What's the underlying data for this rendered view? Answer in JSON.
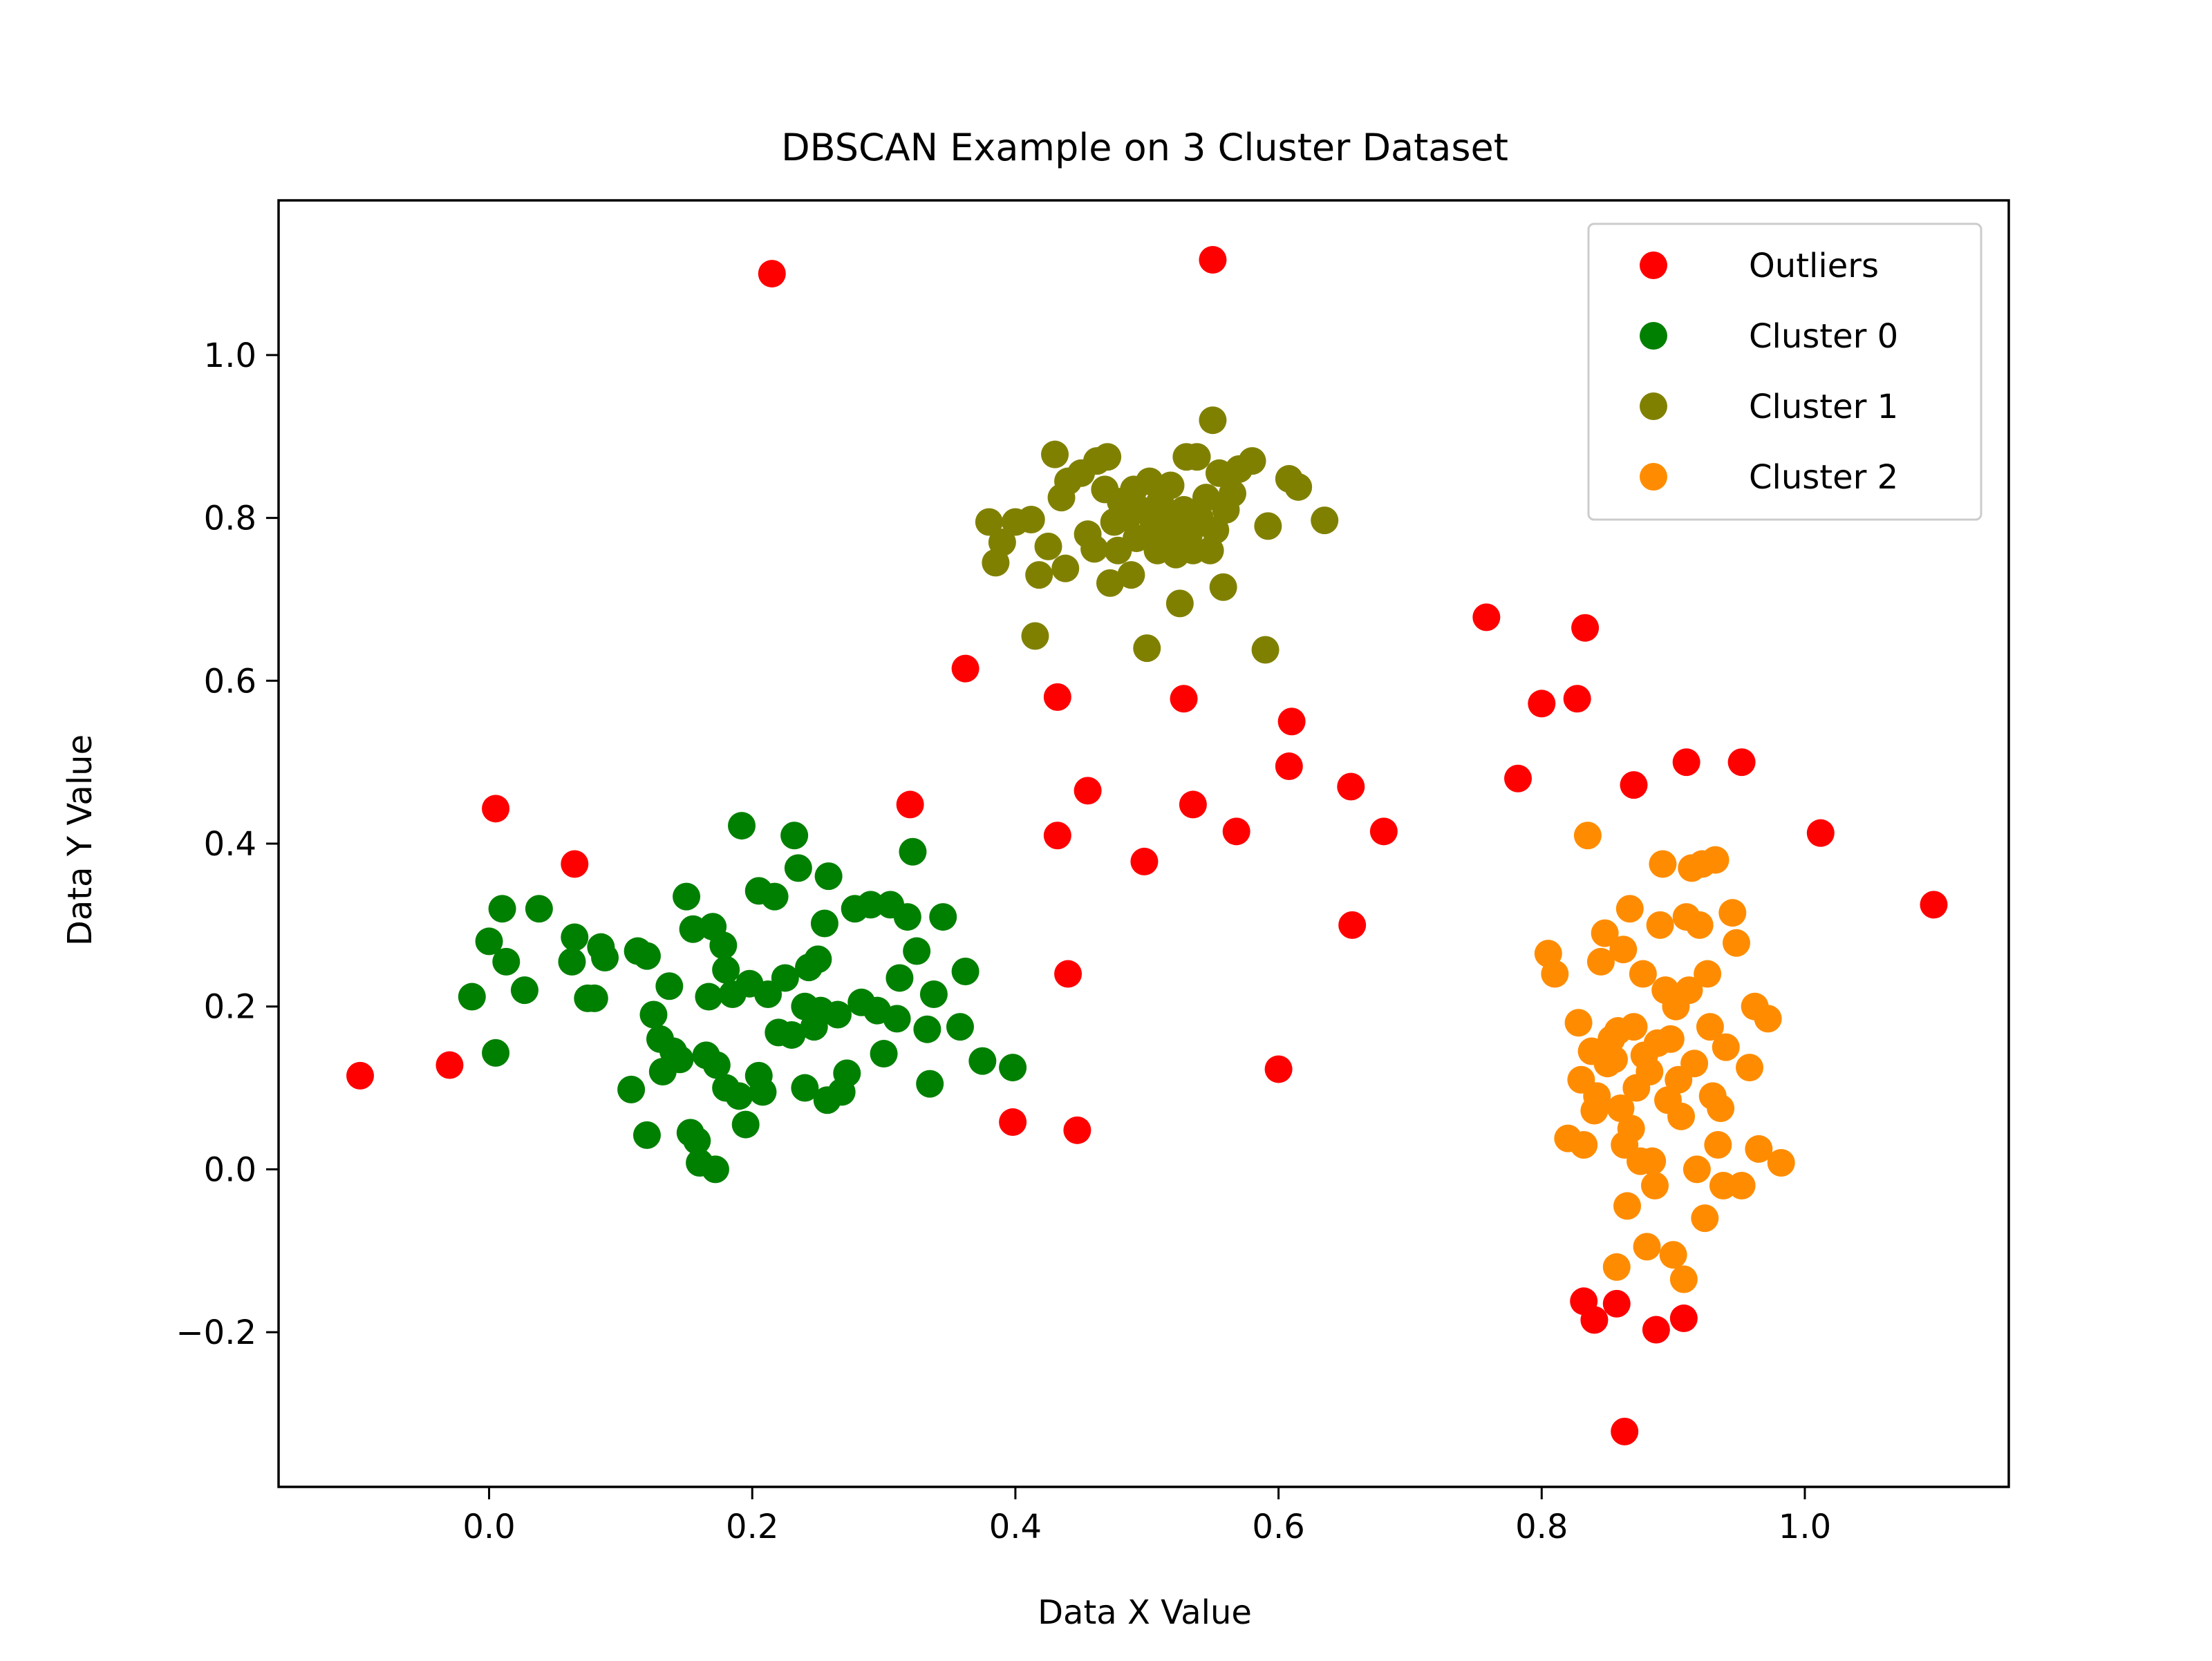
{
  "chart_data": {
    "type": "scatter",
    "title": "DBSCAN Example on 3 Cluster Dataset",
    "xlabel": "Data X Value",
    "ylabel": "Data Y Value",
    "xlim": [
      -0.16,
      1.155
    ],
    "ylim": [
      -0.39,
      1.19
    ],
    "xticks": [
      0.0,
      0.2,
      0.4,
      0.6,
      0.8,
      1.0
    ],
    "xtick_labels": [
      "0.0",
      "0.2",
      "0.4",
      "0.6",
      "0.8",
      "1.0"
    ],
    "yticks": [
      -0.2,
      0.0,
      0.2,
      0.4,
      0.6,
      0.8,
      1.0
    ],
    "ytick_labels": [
      "−0.2",
      "0.0",
      "0.2",
      "0.4",
      "0.6",
      "0.8",
      "1.0"
    ],
    "grid": false,
    "legend_position": "top-right",
    "series": [
      {
        "name": "Outliers",
        "color": "#ff0000",
        "points": [
          [
            0.215,
            1.1
          ],
          [
            0.55,
            1.117
          ],
          [
            -0.098,
            0.115
          ],
          [
            -0.03,
            0.128
          ],
          [
            0.005,
            0.443
          ],
          [
            0.065,
            0.375
          ],
          [
            0.32,
            0.448
          ],
          [
            0.362,
            0.615
          ],
          [
            0.432,
            0.58
          ],
          [
            0.528,
            0.578
          ],
          [
            0.432,
            0.41
          ],
          [
            0.455,
            0.465
          ],
          [
            0.498,
            0.378
          ],
          [
            0.535,
            0.448
          ],
          [
            0.568,
            0.415
          ],
          [
            0.44,
            0.24
          ],
          [
            0.398,
            0.058
          ],
          [
            0.447,
            0.048
          ],
          [
            0.61,
            0.55
          ],
          [
            0.608,
            0.495
          ],
          [
            0.655,
            0.47
          ],
          [
            0.68,
            0.415
          ],
          [
            0.656,
            0.3
          ],
          [
            0.6,
            0.123
          ],
          [
            0.758,
            0.678
          ],
          [
            0.833,
            0.665
          ],
          [
            0.8,
            0.572
          ],
          [
            0.827,
            0.578
          ],
          [
            0.782,
            0.48
          ],
          [
            0.87,
            0.472
          ],
          [
            0.91,
            0.5
          ],
          [
            0.952,
            0.5
          ],
          [
            1.012,
            0.413
          ],
          [
            1.098,
            0.325
          ],
          [
            0.832,
            -0.162
          ],
          [
            0.84,
            -0.185
          ],
          [
            0.857,
            -0.165
          ],
          [
            0.887,
            -0.197
          ],
          [
            0.908,
            -0.183
          ],
          [
            0.863,
            -0.322
          ]
        ]
      },
      {
        "name": "Cluster 0",
        "color": "#008000",
        "points": [
          [
            0.0,
            0.28
          ],
          [
            0.01,
            0.32
          ],
          [
            0.013,
            0.255
          ],
          [
            -0.013,
            0.212
          ],
          [
            0.027,
            0.22
          ],
          [
            0.005,
            0.143
          ],
          [
            0.038,
            0.32
          ],
          [
            0.065,
            0.285
          ],
          [
            0.063,
            0.255
          ],
          [
            0.075,
            0.21
          ],
          [
            0.085,
            0.273
          ],
          [
            0.08,
            0.21
          ],
          [
            0.088,
            0.26
          ],
          [
            0.108,
            0.098
          ],
          [
            0.113,
            0.268
          ],
          [
            0.12,
            0.262
          ],
          [
            0.12,
            0.042
          ],
          [
            0.125,
            0.19
          ],
          [
            0.13,
            0.16
          ],
          [
            0.132,
            0.12
          ],
          [
            0.14,
            0.145
          ],
          [
            0.137,
            0.225
          ],
          [
            0.145,
            0.135
          ],
          [
            0.15,
            0.335
          ],
          [
            0.155,
            0.295
          ],
          [
            0.153,
            0.045
          ],
          [
            0.158,
            0.035
          ],
          [
            0.16,
            0.008
          ],
          [
            0.167,
            0.212
          ],
          [
            0.165,
            0.14
          ],
          [
            0.17,
            0.298
          ],
          [
            0.173,
            0.128
          ],
          [
            0.172,
            0.0
          ],
          [
            0.18,
            0.245
          ],
          [
            0.178,
            0.275
          ],
          [
            0.185,
            0.215
          ],
          [
            0.18,
            0.1
          ],
          [
            0.192,
            0.422
          ],
          [
            0.19,
            0.09
          ],
          [
            0.195,
            0.055
          ],
          [
            0.198,
            0.228
          ],
          [
            0.205,
            0.115
          ],
          [
            0.205,
            0.342
          ],
          [
            0.208,
            0.095
          ],
          [
            0.212,
            0.215
          ],
          [
            0.217,
            0.335
          ],
          [
            0.22,
            0.168
          ],
          [
            0.225,
            0.235
          ],
          [
            0.23,
            0.165
          ],
          [
            0.232,
            0.41
          ],
          [
            0.235,
            0.37
          ],
          [
            0.24,
            0.2
          ],
          [
            0.24,
            0.1
          ],
          [
            0.243,
            0.248
          ],
          [
            0.247,
            0.175
          ],
          [
            0.25,
            0.258
          ],
          [
            0.252,
            0.195
          ],
          [
            0.255,
            0.302
          ],
          [
            0.257,
            0.085
          ],
          [
            0.258,
            0.36
          ],
          [
            0.265,
            0.19
          ],
          [
            0.268,
            0.095
          ],
          [
            0.272,
            0.118
          ],
          [
            0.278,
            0.32
          ],
          [
            0.283,
            0.205
          ],
          [
            0.29,
            0.325
          ],
          [
            0.295,
            0.195
          ],
          [
            0.3,
            0.142
          ],
          [
            0.305,
            0.325
          ],
          [
            0.31,
            0.185
          ],
          [
            0.312,
            0.235
          ],
          [
            0.318,
            0.31
          ],
          [
            0.322,
            0.39
          ],
          [
            0.325,
            0.268
          ],
          [
            0.333,
            0.172
          ],
          [
            0.335,
            0.105
          ],
          [
            0.338,
            0.215
          ],
          [
            0.345,
            0.31
          ],
          [
            0.358,
            0.175
          ],
          [
            0.362,
            0.243
          ],
          [
            0.375,
            0.133
          ],
          [
            0.398,
            0.125
          ]
        ]
      },
      {
        "name": "Cluster 1",
        "color": "#808000",
        "points": [
          [
            0.38,
            0.795
          ],
          [
            0.385,
            0.745
          ],
          [
            0.39,
            0.77
          ],
          [
            0.4,
            0.795
          ],
          [
            0.412,
            0.798
          ],
          [
            0.415,
            0.655
          ],
          [
            0.418,
            0.73
          ],
          [
            0.425,
            0.765
          ],
          [
            0.43,
            0.878
          ],
          [
            0.435,
            0.825
          ],
          [
            0.438,
            0.738
          ],
          [
            0.44,
            0.845
          ],
          [
            0.45,
            0.855
          ],
          [
            0.455,
            0.78
          ],
          [
            0.46,
            0.762
          ],
          [
            0.462,
            0.87
          ],
          [
            0.468,
            0.835
          ],
          [
            0.47,
            0.875
          ],
          [
            0.472,
            0.72
          ],
          [
            0.475,
            0.795
          ],
          [
            0.478,
            0.76
          ],
          [
            0.48,
            0.82
          ],
          [
            0.485,
            0.8
          ],
          [
            0.488,
            0.73
          ],
          [
            0.49,
            0.835
          ],
          [
            0.492,
            0.775
          ],
          [
            0.495,
            0.81
          ],
          [
            0.5,
            0.64
          ],
          [
            0.502,
            0.845
          ],
          [
            0.505,
            0.79
          ],
          [
            0.508,
            0.76
          ],
          [
            0.51,
            0.82
          ],
          [
            0.512,
            0.8
          ],
          [
            0.515,
            0.775
          ],
          [
            0.518,
            0.84
          ],
          [
            0.52,
            0.795
          ],
          [
            0.522,
            0.755
          ],
          [
            0.525,
            0.695
          ],
          [
            0.528,
            0.81
          ],
          [
            0.53,
            0.875
          ],
          [
            0.532,
            0.78
          ],
          [
            0.535,
            0.76
          ],
          [
            0.538,
            0.875
          ],
          [
            0.54,
            0.8
          ],
          [
            0.545,
            0.825
          ],
          [
            0.548,
            0.76
          ],
          [
            0.55,
            0.92
          ],
          [
            0.552,
            0.785
          ],
          [
            0.555,
            0.855
          ],
          [
            0.558,
            0.715
          ],
          [
            0.56,
            0.81
          ],
          [
            0.565,
            0.83
          ],
          [
            0.57,
            0.86
          ],
          [
            0.58,
            0.87
          ],
          [
            0.59,
            0.638
          ],
          [
            0.592,
            0.79
          ],
          [
            0.608,
            0.848
          ],
          [
            0.615,
            0.838
          ],
          [
            0.635,
            0.797
          ]
        ]
      },
      {
        "name": "Cluster 2",
        "color": "#ff8c00",
        "points": [
          [
            0.805,
            0.265
          ],
          [
            0.81,
            0.24
          ],
          [
            0.82,
            0.038
          ],
          [
            0.828,
            0.18
          ],
          [
            0.83,
            0.11
          ],
          [
            0.832,
            0.03
          ],
          [
            0.835,
            0.41
          ],
          [
            0.838,
            0.145
          ],
          [
            0.84,
            0.072
          ],
          [
            0.842,
            0.09
          ],
          [
            0.845,
            0.255
          ],
          [
            0.848,
            0.29
          ],
          [
            0.85,
            0.13
          ],
          [
            0.853,
            0.16
          ],
          [
            0.855,
            0.135
          ],
          [
            0.857,
            -0.12
          ],
          [
            0.858,
            0.17
          ],
          [
            0.86,
            0.075
          ],
          [
            0.862,
            0.27
          ],
          [
            0.863,
            0.03
          ],
          [
            0.865,
            -0.045
          ],
          [
            0.867,
            0.32
          ],
          [
            0.868,
            0.05
          ],
          [
            0.87,
            0.175
          ],
          [
            0.872,
            0.1
          ],
          [
            0.875,
            0.01
          ],
          [
            0.877,
            0.24
          ],
          [
            0.878,
            0.14
          ],
          [
            0.88,
            -0.095
          ],
          [
            0.882,
            0.12
          ],
          [
            0.884,
            0.01
          ],
          [
            0.886,
            -0.02
          ],
          [
            0.888,
            0.155
          ],
          [
            0.89,
            0.3
          ],
          [
            0.892,
            0.375
          ],
          [
            0.894,
            0.22
          ],
          [
            0.896,
            0.085
          ],
          [
            0.898,
            0.16
          ],
          [
            0.9,
            -0.105
          ],
          [
            0.902,
            0.2
          ],
          [
            0.904,
            0.11
          ],
          [
            0.906,
            0.065
          ],
          [
            0.908,
            -0.135
          ],
          [
            0.91,
            0.31
          ],
          [
            0.912,
            0.22
          ],
          [
            0.914,
            0.37
          ],
          [
            0.916,
            0.13
          ],
          [
            0.918,
            0.0
          ],
          [
            0.92,
            0.3
          ],
          [
            0.922,
            0.375
          ],
          [
            0.924,
            -0.06
          ],
          [
            0.926,
            0.24
          ],
          [
            0.928,
            0.175
          ],
          [
            0.93,
            0.09
          ],
          [
            0.932,
            0.38
          ],
          [
            0.934,
            0.03
          ],
          [
            0.936,
            0.075
          ],
          [
            0.938,
            -0.02
          ],
          [
            0.94,
            0.15
          ],
          [
            0.945,
            0.315
          ],
          [
            0.948,
            0.278
          ],
          [
            0.952,
            -0.02
          ],
          [
            0.958,
            0.125
          ],
          [
            0.962,
            0.2
          ],
          [
            0.965,
            0.025
          ],
          [
            0.972,
            0.185
          ],
          [
            0.982,
            0.008
          ]
        ]
      }
    ]
  }
}
